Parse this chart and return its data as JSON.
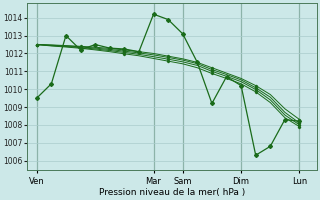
{
  "background_color": "#cce8e8",
  "grid_color": "#aacccc",
  "line_color": "#1a6b1a",
  "marker_color": "#1a6b1a",
  "xlabel": "Pression niveau de la mer( hPa )",
  "ylim": [
    1005.5,
    1014.8
  ],
  "yticks": [
    1006,
    1007,
    1008,
    1009,
    1010,
    1011,
    1012,
    1013,
    1014
  ],
  "xtick_labels": [
    "Ven",
    "Mar",
    "Sam",
    "Dim",
    "Lun"
  ],
  "xtick_positions": [
    0,
    48,
    60,
    84,
    108
  ],
  "xlim": [
    -4,
    115
  ],
  "vline_positions": [
    0,
    48,
    60,
    84,
    108
  ],
  "jagged_x": [
    0,
    6,
    12,
    18,
    24,
    30,
    36,
    42,
    48,
    54,
    60,
    66,
    72,
    78,
    84,
    90,
    96,
    102,
    108
  ],
  "jagged_y": [
    1009.5,
    1010.3,
    1013.0,
    1012.2,
    1012.5,
    1012.3,
    1012.25,
    1012.1,
    1014.2,
    1013.9,
    1013.1,
    1011.5,
    1009.2,
    1010.7,
    1010.2,
    1006.3,
    1006.8,
    1008.3,
    1008.2
  ],
  "smooth_lines": [
    [
      1012.5,
      1012.48,
      1012.44,
      1012.4,
      1012.35,
      1012.28,
      1012.2,
      1012.1,
      1012.0,
      1011.85,
      1011.7,
      1011.5,
      1011.2,
      1010.9,
      1010.6,
      1010.2,
      1009.7,
      1008.9,
      1008.3
    ],
    [
      1012.5,
      1012.46,
      1012.42,
      1012.37,
      1012.3,
      1012.22,
      1012.13,
      1012.03,
      1011.92,
      1011.78,
      1011.63,
      1011.43,
      1011.1,
      1010.82,
      1010.52,
      1010.08,
      1009.55,
      1008.7,
      1008.1
    ],
    [
      1012.5,
      1012.44,
      1012.39,
      1012.33,
      1012.25,
      1012.16,
      1012.06,
      1011.95,
      1011.82,
      1011.68,
      1011.53,
      1011.33,
      1011.0,
      1010.72,
      1010.42,
      1009.98,
      1009.4,
      1008.55,
      1008.0
    ],
    [
      1012.5,
      1012.42,
      1012.36,
      1012.29,
      1012.2,
      1012.1,
      1011.98,
      1011.87,
      1011.72,
      1011.57,
      1011.42,
      1011.2,
      1010.88,
      1010.6,
      1010.3,
      1009.85,
      1009.25,
      1008.4,
      1007.9
    ]
  ]
}
